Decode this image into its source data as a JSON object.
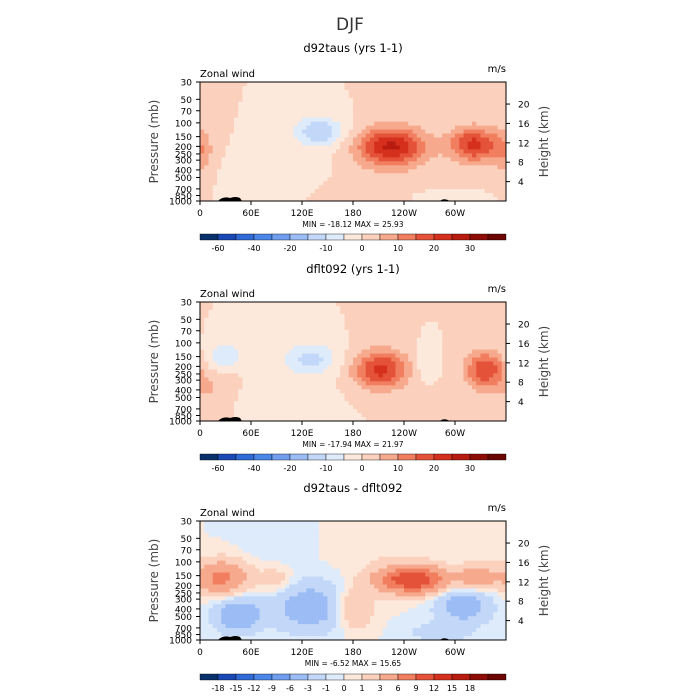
{
  "figure_title": "DJF",
  "colors": {
    "div20": [
      "#08306b",
      "#1a49b5",
      "#2f6ad6",
      "#4a86e8",
      "#729ef0",
      "#9cbcf5",
      "#c3d8f8",
      "#deebfb",
      "#fde9dc",
      "#fbd0bc",
      "#f6a98c",
      "#f07e5f",
      "#e5523a",
      "#d5301d",
      "#b81b0f",
      "#8e0c06",
      "#6b0602"
    ],
    "terrain": "#000000"
  },
  "chart_data": [
    {
      "type": "heatmap",
      "title": "d92taus (yrs 1-1)",
      "left_label": "Zonal wind",
      "right_label": "m/s",
      "ylabel": "Pressure (mb)",
      "y2label": "Height (km)",
      "xticks": [
        "0",
        "60E",
        "120E",
        "180",
        "120W",
        "60W"
      ],
      "xtick_lons": [
        0,
        60,
        120,
        180,
        240,
        300
      ],
      "yticks": [
        "30",
        "50",
        "70",
        "100",
        "150",
        "200",
        "250",
        "300",
        "400",
        "500",
        "700",
        "850",
        "1000"
      ],
      "ytick_p": [
        30,
        50,
        70,
        100,
        150,
        200,
        250,
        300,
        400,
        500,
        700,
        850,
        1000
      ],
      "y2ticks": [
        "4",
        "8",
        "12",
        "16",
        "20"
      ],
      "y2tick_km": [
        4,
        8,
        12,
        16,
        20
      ],
      "xlim_lon": [
        0,
        360
      ],
      "ylim_p": [
        1000,
        30
      ],
      "min_label": "MIN = -18.12",
      "max_label": "MAX =  25.93",
      "colorbar_ticks": [
        "-60",
        "-40",
        "-20",
        "-10",
        "0",
        "10",
        "20",
        "30"
      ],
      "colorbar_levels": [
        -70,
        -60,
        -50,
        -40,
        -30,
        -20,
        -15,
        -10,
        -5,
        0,
        5,
        10,
        15,
        20,
        25,
        30,
        35
      ],
      "features": [
        {
          "lon": 140,
          "p": 130,
          "amp": -15,
          "sx": 20,
          "sy": 0.3
        },
        {
          "lon": 225,
          "p": 200,
          "amp": 25.9,
          "sx": 28,
          "sy": 0.4
        },
        {
          "lon": 322,
          "p": 190,
          "amp": 22,
          "sx": 20,
          "sy": 0.36
        },
        {
          "lon": 0,
          "p": 240,
          "amp": 8,
          "sx": 12,
          "sy": 0.5
        },
        {
          "lon": 95,
          "p": 450,
          "amp": -5,
          "sx": 40,
          "sy": 0.45
        },
        {
          "lon": 290,
          "p": 880,
          "amp": -6,
          "sx": 22,
          "sy": 0.1
        },
        {
          "lon": 180,
          "p": 600,
          "amp": 2,
          "sx": 70,
          "sy": 0.5
        }
      ]
    },
    {
      "type": "heatmap",
      "title": "dflt092 (yrs 1-1)",
      "left_label": "Zonal wind",
      "right_label": "m/s",
      "ylabel": "Pressure (mb)",
      "y2label": "Height (km)",
      "xticks": [
        "0",
        "60E",
        "120E",
        "180",
        "120W",
        "60W"
      ],
      "xtick_lons": [
        0,
        60,
        120,
        180,
        240,
        300
      ],
      "yticks": [
        "30",
        "50",
        "70",
        "100",
        "150",
        "200",
        "250",
        "300",
        "400",
        "500",
        "700",
        "850",
        "1000"
      ],
      "ytick_p": [
        30,
        50,
        70,
        100,
        150,
        200,
        250,
        300,
        400,
        500,
        700,
        850,
        1000
      ],
      "y2ticks": [
        "4",
        "8",
        "12",
        "16",
        "20"
      ],
      "y2tick_km": [
        4,
        8,
        12,
        16,
        20
      ],
      "xlim_lon": [
        0,
        360
      ],
      "ylim_p": [
        1000,
        30
      ],
      "min_label": "MIN = -17.94",
      "max_label": "MAX =  21.97",
      "colorbar_ticks": [
        "-60",
        "-40",
        "-20",
        "-10",
        "0",
        "10",
        "20",
        "30"
      ],
      "colorbar_levels": [
        -70,
        -60,
        -50,
        -40,
        -30,
        -20,
        -15,
        -10,
        -5,
        0,
        5,
        10,
        15,
        20,
        25,
        30,
        35
      ],
      "features": [
        {
          "lon": 28,
          "p": 150,
          "amp": -10,
          "sx": 14,
          "sy": 0.28
        },
        {
          "lon": 130,
          "p": 160,
          "amp": -12,
          "sx": 22,
          "sy": 0.32
        },
        {
          "lon": 213,
          "p": 220,
          "amp": 22,
          "sx": 22,
          "sy": 0.4
        },
        {
          "lon": 335,
          "p": 220,
          "amp": 20,
          "sx": 16,
          "sy": 0.38
        },
        {
          "lon": 265,
          "p": 180,
          "amp": -6,
          "sx": 8,
          "sy": 0.3
        },
        {
          "lon": 15,
          "p": 380,
          "amp": 5,
          "sx": 20,
          "sy": 0.4
        },
        {
          "lon": 95,
          "p": 480,
          "amp": -4,
          "sx": 35,
          "sy": 0.4
        },
        {
          "lon": 320,
          "p": 700,
          "amp": 3,
          "sx": 30,
          "sy": 0.3
        }
      ]
    },
    {
      "type": "heatmap",
      "title": "d92taus - dflt092",
      "left_label": "Zonal wind",
      "right_label": "m/s",
      "ylabel": "Pressure (mb)",
      "y2label": "Height (km)",
      "xticks": [
        "0",
        "60E",
        "120E",
        "180",
        "120W",
        "60W"
      ],
      "xtick_lons": [
        0,
        60,
        120,
        180,
        240,
        300
      ],
      "yticks": [
        "30",
        "50",
        "70",
        "100",
        "150",
        "200",
        "250",
        "300",
        "400",
        "500",
        "700",
        "850",
        "1000"
      ],
      "ytick_p": [
        30,
        50,
        70,
        100,
        150,
        200,
        250,
        300,
        400,
        500,
        700,
        850,
        1000
      ],
      "y2ticks": [
        "4",
        "8",
        "12",
        "16",
        "20"
      ],
      "y2tick_km": [
        4,
        8,
        12,
        16,
        20
      ],
      "xlim_lon": [
        0,
        360
      ],
      "ylim_p": [
        1000,
        30
      ],
      "min_label": "MIN = -6.52",
      "max_label": "MAX =  15.65",
      "colorbar_ticks": [
        "-18",
        "-15",
        "-12",
        "-9",
        "-6",
        "-3",
        "-1",
        "0",
        "1",
        "3",
        "6",
        "9",
        "12",
        "15",
        "18"
      ],
      "colorbar_levels": [
        -21,
        -18,
        -15,
        -12,
        -9,
        -6,
        -3,
        -1,
        0,
        1,
        3,
        6,
        9,
        12,
        15,
        18,
        21
      ],
      "features": [
        {
          "lon": 25,
          "p": 160,
          "amp": 7,
          "sx": 22,
          "sy": 0.35
        },
        {
          "lon": 250,
          "p": 170,
          "amp": 12,
          "sx": 30,
          "sy": 0.28
        },
        {
          "lon": 325,
          "p": 160,
          "amp": 6,
          "sx": 14,
          "sy": 0.25
        },
        {
          "lon": 130,
          "p": 380,
          "amp": -5,
          "sx": 30,
          "sy": 0.5
        },
        {
          "lon": 45,
          "p": 480,
          "amp": -6,
          "sx": 18,
          "sy": 0.35
        },
        {
          "lon": 310,
          "p": 350,
          "amp": -5,
          "sx": 22,
          "sy": 0.4
        },
        {
          "lon": 180,
          "p": 400,
          "amp": 4,
          "sx": 16,
          "sy": 0.4
        },
        {
          "lon": 90,
          "p": 170,
          "amp": 2,
          "sx": 14,
          "sy": 0.3
        },
        {
          "lon": 200,
          "p": 60,
          "amp": 1,
          "sx": 50,
          "sy": 0.4
        },
        {
          "lon": 100,
          "p": 60,
          "amp": -1,
          "sx": 30,
          "sy": 0.4
        },
        {
          "lon": 280,
          "p": 800,
          "amp": -2,
          "sx": 25,
          "sy": 0.2
        }
      ]
    }
  ]
}
